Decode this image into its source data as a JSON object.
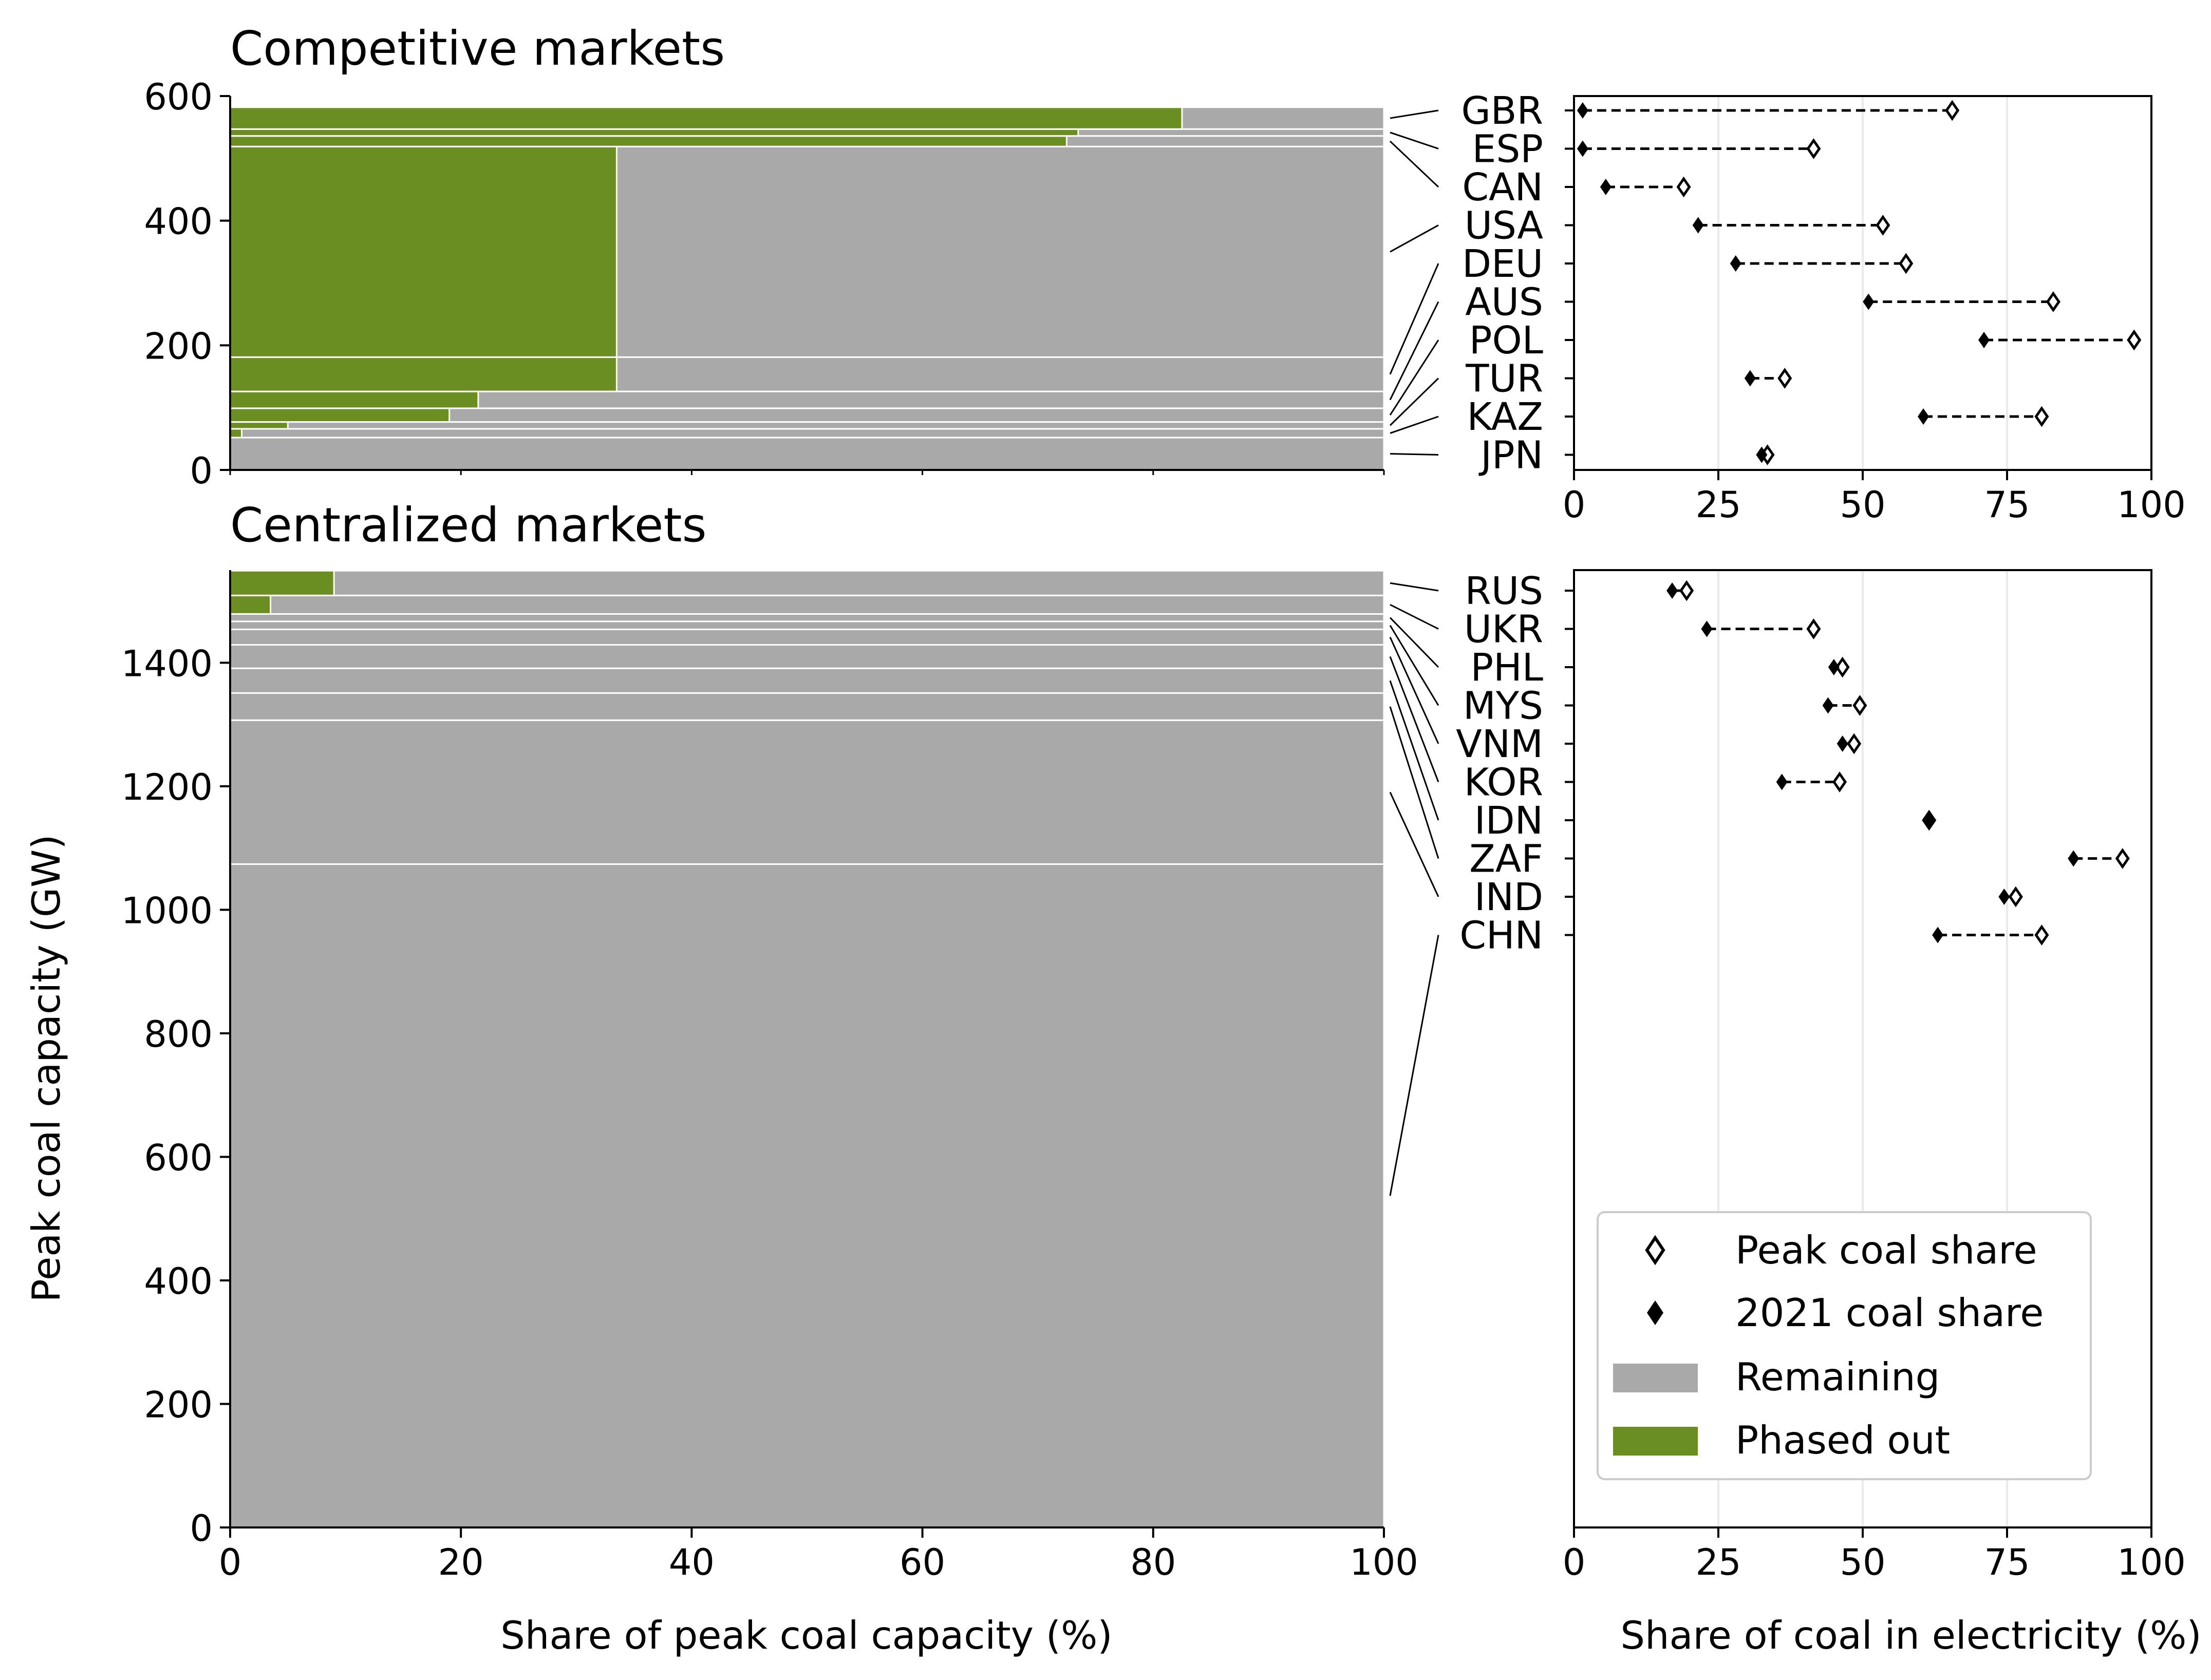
{
  "colors": {
    "remaining": "#a9a9a9",
    "phased_out": "#6b8e23",
    "marker": "#000000",
    "grid": "#ebebeb"
  },
  "legend": {
    "items": [
      {
        "label": "Peak coal share",
        "kind": "open-diamond"
      },
      {
        "label": "2021 coal share",
        "kind": "filled-diamond"
      },
      {
        "label": "Remaining",
        "kind": "patch-remaining"
      },
      {
        "label": "Phased out",
        "kind": "patch-phased"
      }
    ],
    "placement": "lower-right of lower dot panel"
  },
  "chart_data": [
    {
      "type": "bar",
      "subtype": "stacked-horizontal-marimekko",
      "title": "Competitive markets",
      "xlabel": "",
      "ylabel": "",
      "xlim": [
        0,
        100
      ],
      "ylim": [
        0,
        600
      ],
      "yticks": [
        0,
        200,
        400,
        600
      ],
      "countries_bottom_to_top": [
        "JPN",
        "KAZ",
        "TUR",
        "POL",
        "AUS",
        "DEU",
        "USA",
        "CAN",
        "ESP",
        "GBR"
      ],
      "peak_capacity_gw": [
        52,
        14,
        11,
        22,
        27,
        55,
        338,
        17,
        11,
        35
      ],
      "phased_out_pct": [
        0,
        1,
        5,
        19,
        21.5,
        33.5,
        33.5,
        72.5,
        73.5,
        82.5
      ],
      "series": [
        {
          "name": "Phased out",
          "values": [
            0,
            1,
            5,
            19,
            21.5,
            33.5,
            33.5,
            72.5,
            73.5,
            82.5
          ]
        },
        {
          "name": "Remaining",
          "values": [
            100,
            99,
            95,
            81,
            78.5,
            66.5,
            66.5,
            27.5,
            26.5,
            17.5
          ]
        }
      ]
    },
    {
      "type": "bar",
      "subtype": "stacked-horizontal-marimekko",
      "title": "Centralized markets",
      "xlabel": "Share of peak coal capacity (%)",
      "ylabel": "Peak coal capacity (GW)",
      "xlim": [
        0,
        100
      ],
      "ylim": [
        0,
        1550
      ],
      "yticks": [
        0,
        200,
        400,
        600,
        800,
        1000,
        1200,
        1400
      ],
      "xticks": [
        0,
        20,
        40,
        60,
        80,
        100
      ],
      "countries_bottom_to_top": [
        "CHN",
        "IND",
        "ZAF",
        "IDN",
        "KOR",
        "VNM",
        "MYS",
        "PHL",
        "UKR",
        "RUS"
      ],
      "peak_capacity_gw": [
        1074,
        233,
        44,
        40,
        38,
        25,
        13,
        12,
        30,
        40
      ],
      "phased_out_pct": [
        0,
        0,
        0,
        0,
        0,
        0,
        0,
        0,
        3.5,
        9
      ],
      "series": [
        {
          "name": "Phased out",
          "values": [
            0,
            0,
            0,
            0,
            0,
            0,
            0,
            0,
            3.5,
            9
          ]
        },
        {
          "name": "Remaining",
          "values": [
            100,
            100,
            100,
            100,
            100,
            100,
            100,
            100,
            96.5,
            91
          ]
        }
      ]
    },
    {
      "type": "scatter",
      "subtype": "dumbbell",
      "title": "",
      "xlabel": "",
      "xlim": [
        0,
        100
      ],
      "xticks": [
        0,
        25,
        50,
        75,
        100
      ],
      "categories": [
        "GBR",
        "ESP",
        "CAN",
        "USA",
        "DEU",
        "AUS",
        "POL",
        "TUR",
        "KAZ",
        "JPN"
      ],
      "series": [
        {
          "name": "Peak coal share",
          "values": [
            65.5,
            41.5,
            19,
            53.5,
            57.5,
            83,
            97,
            36.5,
            81,
            33.5
          ]
        },
        {
          "name": "2021 coal share",
          "values": [
            1.5,
            1.5,
            5.5,
            21.5,
            28,
            51,
            71,
            30.5,
            60.5,
            32.5
          ]
        }
      ]
    },
    {
      "type": "scatter",
      "subtype": "dumbbell",
      "title": "",
      "xlabel": "Share of coal in electricity (%)",
      "xlim": [
        0,
        100
      ],
      "xticks": [
        0,
        25,
        50,
        75,
        100
      ],
      "categories": [
        "RUS",
        "UKR",
        "PHL",
        "MYS",
        "VNM",
        "KOR",
        "IDN",
        "ZAF",
        "IND",
        "CHN"
      ],
      "series": [
        {
          "name": "Peak coal share",
          "values": [
            19.5,
            41.5,
            46.5,
            49.5,
            48.5,
            46,
            61.5,
            95,
            76.5,
            81
          ]
        },
        {
          "name": "2021 coal share",
          "values": [
            17,
            23,
            45,
            44,
            46.5,
            36,
            61.5,
            86.5,
            74.5,
            63
          ]
        }
      ]
    }
  ]
}
